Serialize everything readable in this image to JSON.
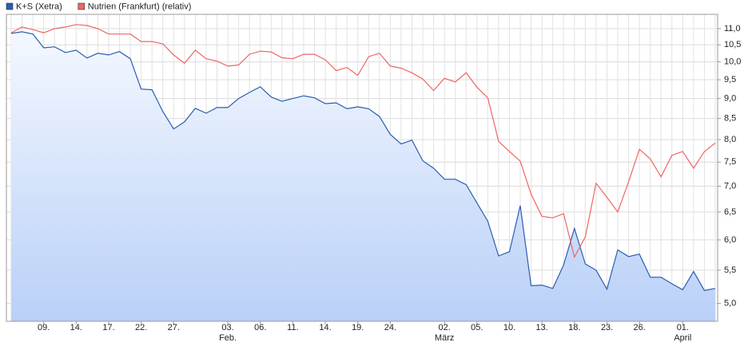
{
  "chart_data": {
    "type": "line",
    "log_scale": true,
    "grid": true,
    "legend_position": "top-left",
    "categories": [
      null,
      null,
      null,
      "09.",
      null,
      null,
      "14.",
      null,
      null,
      "17.",
      null,
      null,
      "22.",
      null,
      null,
      "27.",
      null,
      null,
      null,
      null,
      "03.",
      null,
      null,
      "06.",
      null,
      null,
      "11.",
      null,
      null,
      "14.",
      null,
      null,
      "19.",
      null,
      null,
      "24.",
      null,
      null,
      null,
      null,
      "02.",
      null,
      null,
      "05.",
      null,
      null,
      "10.",
      null,
      null,
      "13.",
      null,
      null,
      "18.",
      null,
      null,
      "23.",
      null,
      null,
      "26.",
      null,
      null,
      null,
      "01.",
      null,
      null,
      null
    ],
    "category_months": [
      null,
      null,
      null,
      null,
      null,
      null,
      null,
      null,
      null,
      null,
      null,
      null,
      null,
      null,
      null,
      null,
      null,
      null,
      null,
      null,
      "Feb.",
      null,
      null,
      null,
      null,
      null,
      null,
      null,
      null,
      null,
      null,
      null,
      null,
      null,
      null,
      null,
      null,
      null,
      null,
      null,
      "März",
      null,
      null,
      null,
      null,
      null,
      null,
      null,
      null,
      null,
      null,
      null,
      null,
      null,
      null,
      null,
      null,
      null,
      null,
      null,
      null,
      null,
      "April",
      null,
      null,
      null
    ],
    "series": [
      {
        "name": "K+S (Xetra)",
        "color": "#2a5db0",
        "area": true,
        "values": [
          10.85,
          10.9,
          10.83,
          10.41,
          10.44,
          10.27,
          10.34,
          10.11,
          10.25,
          10.2,
          10.3,
          10.09,
          9.25,
          9.23,
          8.67,
          8.25,
          8.42,
          8.75,
          8.63,
          8.77,
          8.77,
          9.0,
          9.16,
          9.31,
          9.04,
          8.93,
          9.0,
          9.07,
          9.02,
          8.87,
          8.89,
          8.74,
          8.79,
          8.74,
          8.55,
          8.12,
          7.9,
          7.99,
          7.53,
          7.37,
          7.14,
          7.14,
          7.03,
          6.67,
          6.33,
          5.73,
          5.8,
          6.62,
          5.26,
          5.27,
          5.22,
          5.58,
          6.2,
          5.6,
          5.5,
          5.21,
          5.83,
          5.72,
          5.76,
          5.39,
          5.39,
          5.29,
          5.2,
          5.48,
          5.19,
          5.22
        ]
      },
      {
        "name": "Nutrien (Frankfurt) (relativ)",
        "color": "#f06464",
        "area": false,
        "values": [
          10.87,
          11.05,
          10.97,
          10.87,
          11.0,
          11.05,
          11.13,
          11.1,
          11.0,
          10.83,
          10.83,
          10.83,
          10.6,
          10.6,
          10.53,
          10.2,
          9.96,
          10.34,
          10.09,
          10.02,
          9.88,
          9.91,
          10.22,
          10.31,
          10.29,
          10.12,
          10.09,
          10.22,
          10.22,
          10.06,
          9.75,
          9.84,
          9.62,
          10.15,
          10.25,
          9.88,
          9.82,
          9.69,
          9.52,
          9.21,
          9.54,
          9.44,
          9.69,
          9.3,
          9.02,
          7.96,
          7.73,
          7.52,
          6.84,
          6.42,
          6.39,
          6.47,
          5.71,
          6.05,
          7.06,
          6.78,
          6.5,
          7.09,
          7.78,
          7.57,
          7.19,
          7.65,
          7.73,
          7.37,
          7.73,
          7.92
        ]
      }
    ],
    "ylim": [
      4.75,
      11.46
    ],
    "yticks": [
      {
        "value": 5,
        "label": "5,0"
      },
      {
        "value": 5.5,
        "label": "5,5"
      },
      {
        "value": 6,
        "label": "6,0"
      },
      {
        "value": 6.5,
        "label": "6,5"
      },
      {
        "value": 7,
        "label": "7,0"
      },
      {
        "value": 7.5,
        "label": "7,5"
      },
      {
        "value": 8,
        "label": "8,0"
      },
      {
        "value": 8.5,
        "label": "8,5"
      },
      {
        "value": 9,
        "label": "9,0"
      },
      {
        "value": 9.5,
        "label": "9,5"
      },
      {
        "value": 10,
        "label": "10,0"
      },
      {
        "value": 10.5,
        "label": "10,5"
      },
      {
        "value": 11,
        "label": "11,0"
      }
    ]
  }
}
